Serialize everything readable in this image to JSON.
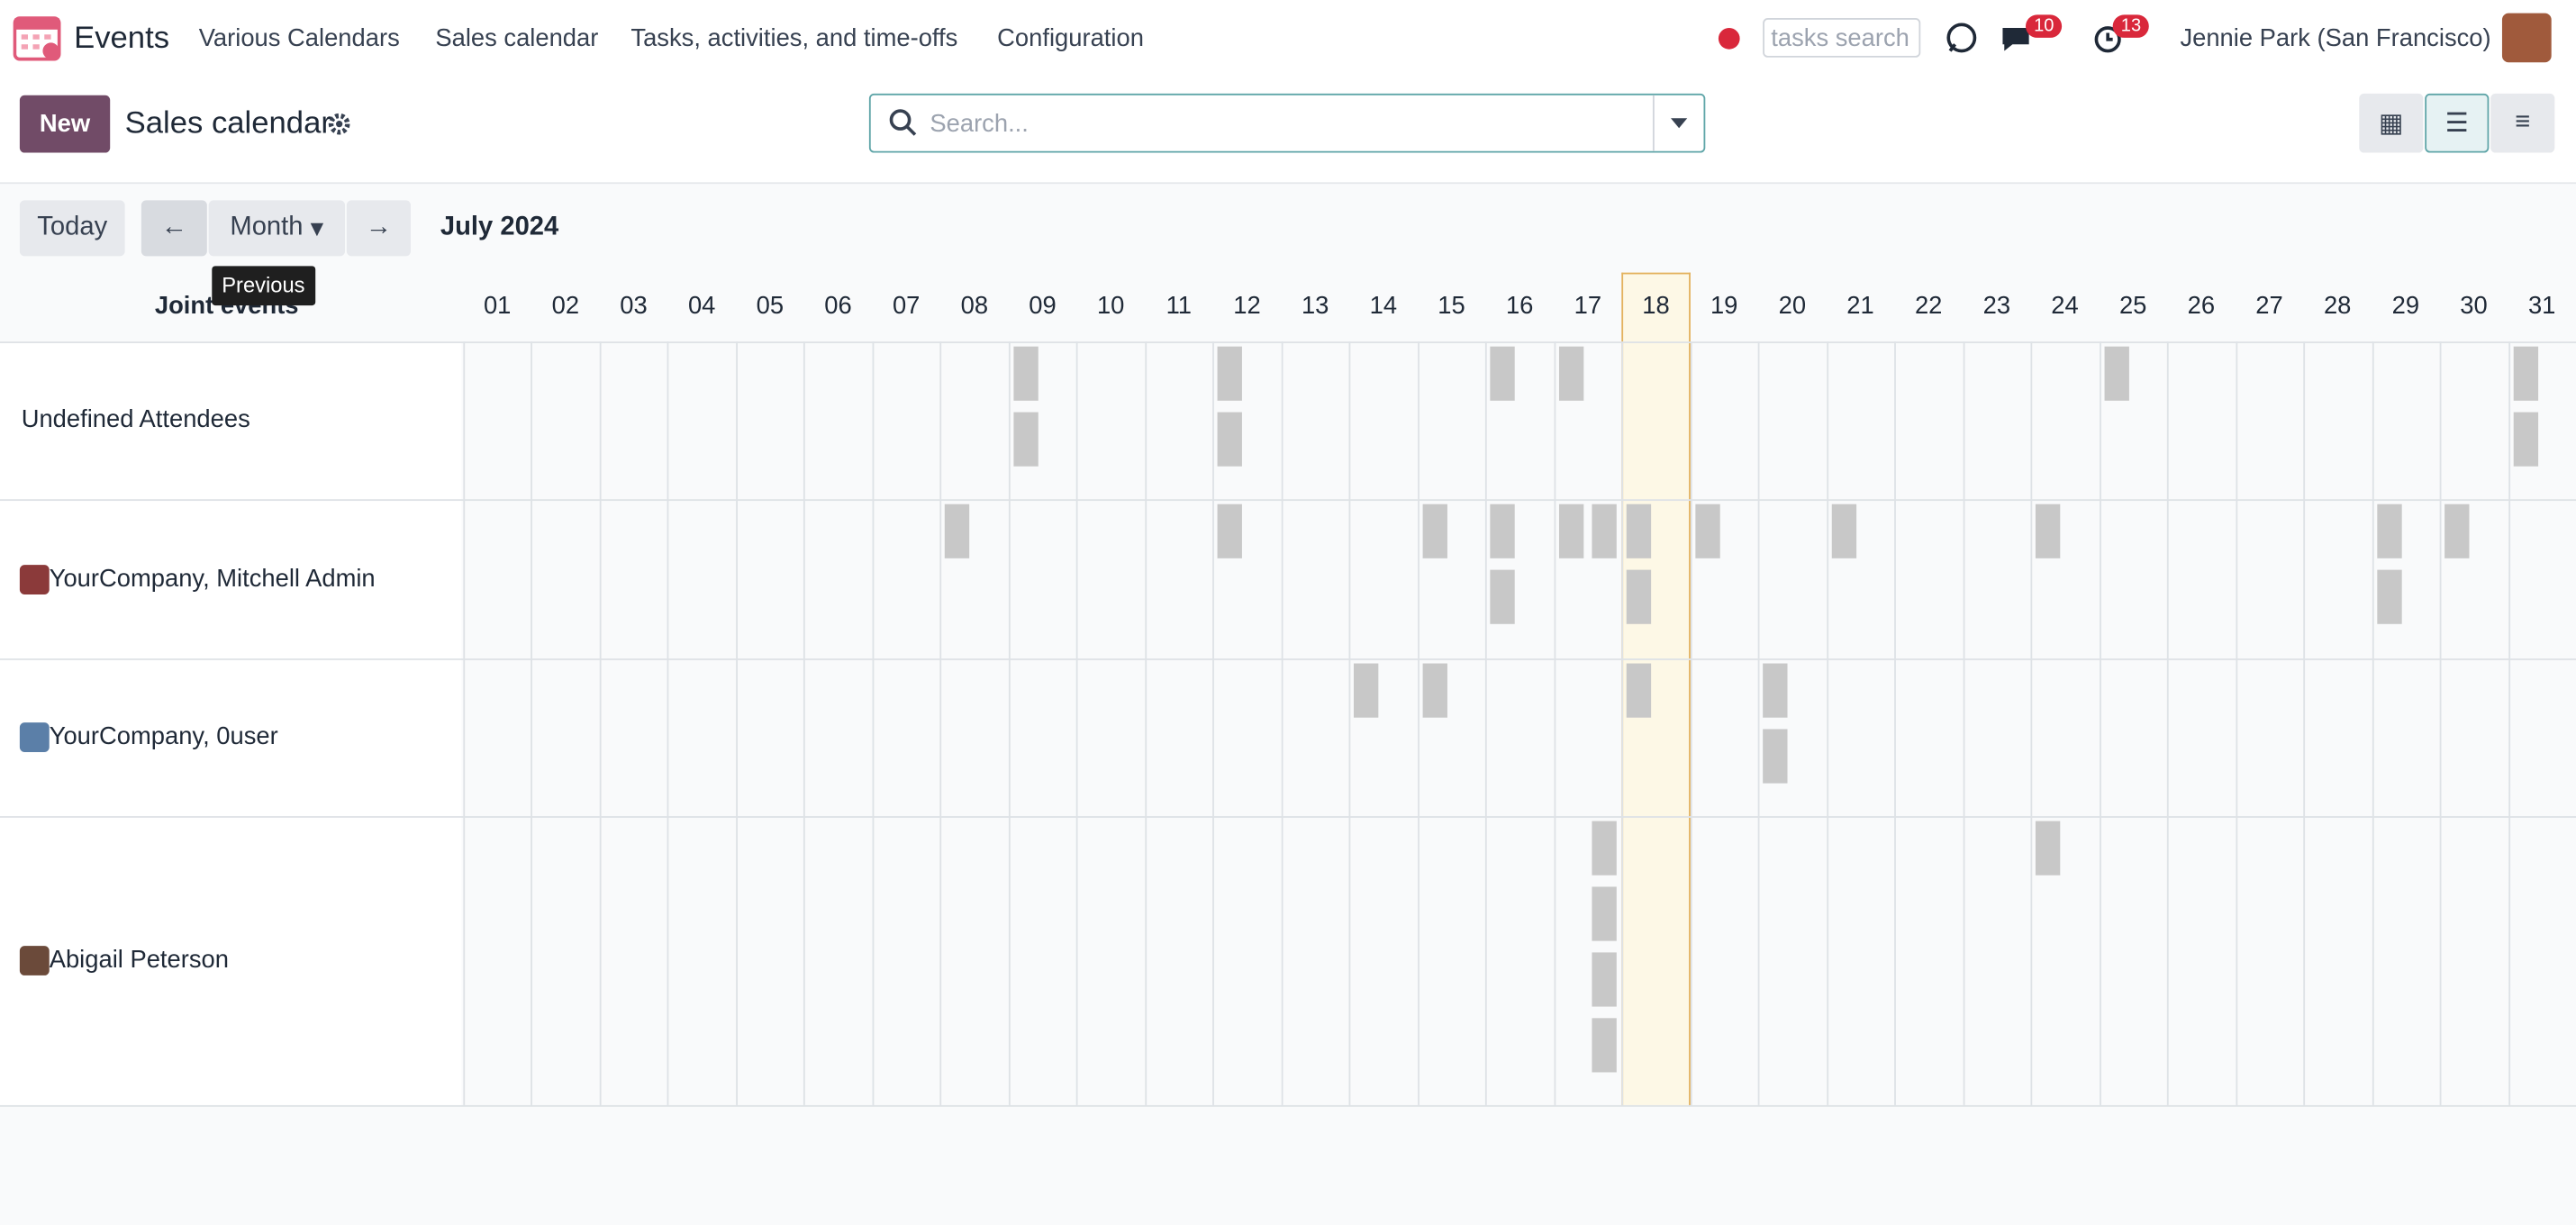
{
  "nav": {
    "app_name": "Events",
    "menu": [
      "Various Calendars",
      "Sales calendar",
      "Tasks, activities, and time-offs",
      "Configuration"
    ],
    "search_placeholder": "tasks search",
    "messages_badge": 10,
    "activities_badge": 13,
    "user": "Jennie Park (San Francisco)"
  },
  "control": {
    "new_button": "New",
    "title": "Sales calendar",
    "search_placeholder": "Search..."
  },
  "toolbar": {
    "today": "Today",
    "scale": "Month",
    "period": "July 2024",
    "tooltip": "Previous"
  },
  "grid": {
    "header": "Joint events",
    "days": [
      "01",
      "02",
      "03",
      "04",
      "05",
      "06",
      "07",
      "08",
      "09",
      "10",
      "11",
      "12",
      "13",
      "14",
      "15",
      "16",
      "17",
      "18",
      "19",
      "20",
      "21",
      "22",
      "23",
      "24",
      "25",
      "26",
      "27",
      "28",
      "29",
      "30",
      "31"
    ],
    "rows": [
      {
        "label": "Undefined Attendees"
      },
      {
        "label": "YourCompany, Mitchell Admin"
      },
      {
        "label": "YourCompany, 0user"
      },
      {
        "label": "Abigail Peterson"
      }
    ]
  }
}
